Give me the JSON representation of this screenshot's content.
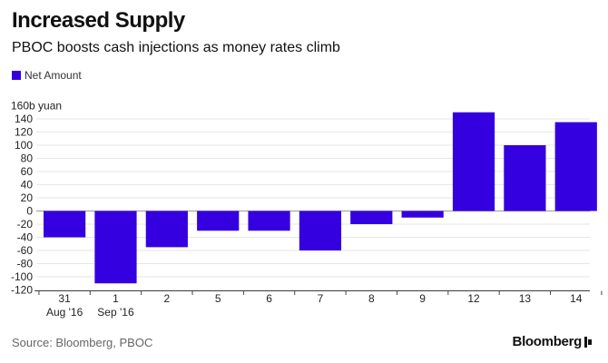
{
  "chart_data": {
    "type": "bar",
    "title": "Increased Supply",
    "subtitle": "PBOC boosts cash injections as money rates climb",
    "legend": [
      "Net Amount"
    ],
    "unit_label": "160b yuan",
    "ylim": [
      -120,
      160
    ],
    "yticks": [
      -120,
      -100,
      -80,
      -60,
      -40,
      -20,
      0,
      20,
      40,
      60,
      80,
      100,
      120,
      140
    ],
    "categories": [
      {
        "day": "31",
        "sub": "Aug '16"
      },
      {
        "day": "1",
        "sub": "Sep '16"
      },
      {
        "day": "2",
        "sub": ""
      },
      {
        "day": "5",
        "sub": ""
      },
      {
        "day": "6",
        "sub": ""
      },
      {
        "day": "7",
        "sub": ""
      },
      {
        "day": "8",
        "sub": ""
      },
      {
        "day": "9",
        "sub": ""
      },
      {
        "day": "12",
        "sub": ""
      },
      {
        "day": "13",
        "sub": ""
      },
      {
        "day": "14",
        "sub": ""
      }
    ],
    "series": [
      {
        "name": "Net Amount",
        "values": [
          -40,
          -110,
          -55,
          -30,
          -30,
          -60,
          -20,
          -10,
          150,
          100,
          135
        ]
      }
    ],
    "bar_color": "#3500e0"
  },
  "footer": {
    "source": "Source: Bloomberg, PBOC",
    "brand": "Bloomberg"
  }
}
